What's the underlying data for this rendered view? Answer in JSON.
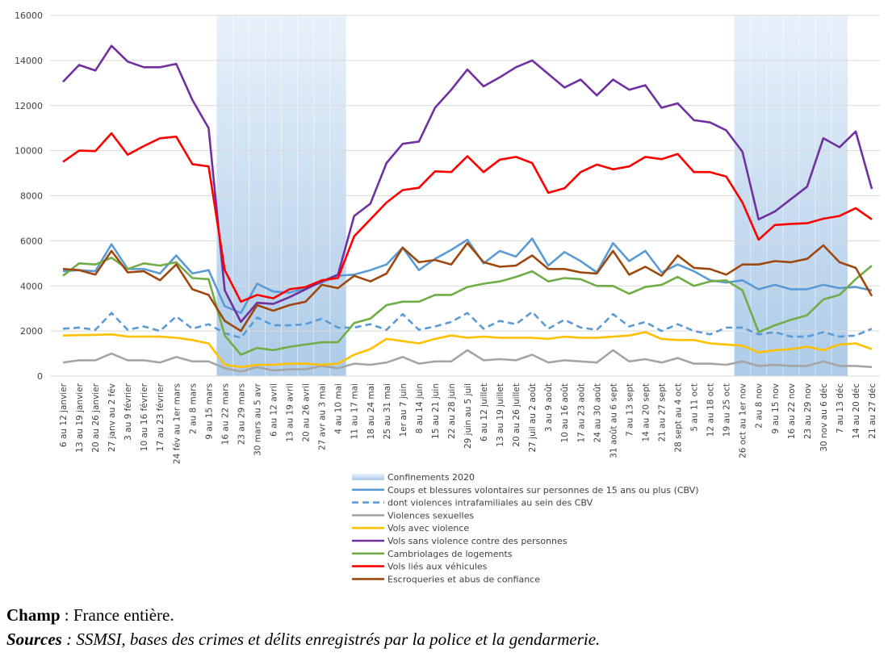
{
  "chart_data": {
    "type": "line",
    "title": "",
    "xlabel": "",
    "ylabel": "",
    "ylim": [
      0,
      16000
    ],
    "yticks": [
      0,
      2000,
      4000,
      6000,
      8000,
      10000,
      12000,
      14000,
      16000
    ],
    "grid": "horizontal",
    "legend_placement": "bottom",
    "categories": [
      "6 au 12 janvier",
      "13 au 19 janvier",
      "20 au 26 janvier",
      "27 janv au 2 fév",
      "3 au 9 février",
      "10 au 16 février",
      "17 au 23 février",
      "24 fév au 1er mars",
      "2 au 8 mars",
      "9 au 15 mars",
      "16 au 22 mars",
      "23 au 29 mars",
      "30 mars au 5 avr",
      "6 au 12 avril",
      "13 au 19 avril",
      "20 au 26 avril",
      "27 avr au 3 mai",
      "4 au 10 mai",
      "11 au 17 mai",
      "18 au 24 mai",
      "25 au 31 mai",
      "1er au 7 juin",
      "8 au 14 juin",
      "15 au 21 juin",
      "22 au 28 juin",
      "29 juin au 5 juil",
      "6 au 12 juillet",
      "13 au 19 juillet",
      "20 au 26 juillet",
      "27 juil au 2 août",
      "3 au 9 août",
      "10 au 16 août",
      "17 au 23 août",
      "24 au 30 août",
      "31 août au 6 sept",
      "7 au 13 sept",
      "14 au 20 sept",
      "21 au 27 sept",
      "28 sept au 4 oct",
      "5 au 11 oct",
      "12 au 18 oct",
      "19 au 25 oct",
      "26 oct au 1er nov",
      "2 au 8 nov",
      "9 au 15 nov",
      "16 au 22 nov",
      "23 au 29 nov",
      "30 nov au 6 déc",
      "7 au 13 déc",
      "14 au 20 déc",
      "21 au 27 déc"
    ],
    "shaded_periods": {
      "name": "Confinements 2020",
      "color": "#b4cfea",
      "ranges": [
        [
          "16 au 22 mars",
          "4 au 10 mai"
        ],
        [
          "26 oct au 1er nov",
          "7 au 13 déc"
        ]
      ]
    },
    "series": [
      {
        "name": "Coups et blessures volontaires sur personnes de 15 ans ou plus (CBV)",
        "color": "#5b9bd5",
        "dash": false,
        "values": [
          4650,
          4700,
          4650,
          5850,
          4750,
          4750,
          4550,
          5350,
          4550,
          4700,
          3100,
          2800,
          4100,
          3750,
          3700,
          3900,
          4150,
          4450,
          4500,
          4700,
          4950,
          5700,
          4700,
          5200,
          5600,
          6050,
          5000,
          5550,
          5300,
          6100,
          4900,
          5500,
          5100,
          4600,
          5900,
          5100,
          5550,
          4600,
          4950,
          4650,
          4250,
          4150,
          4250,
          3850,
          4050,
          3850,
          3850,
          4050,
          3900,
          3950,
          3800
        ]
      },
      {
        "name": "dont violences intrafamiliales au sein des CBV",
        "color": "#5b9bd5",
        "dash": true,
        "values": [
          2100,
          2150,
          2050,
          2800,
          2050,
          2200,
          2000,
          2650,
          2100,
          2300,
          1900,
          1700,
          2600,
          2250,
          2250,
          2300,
          2550,
          2150,
          2150,
          2300,
          2050,
          2750,
          2050,
          2200,
          2400,
          2800,
          2100,
          2450,
          2300,
          2850,
          2100,
          2500,
          2150,
          2050,
          2750,
          2200,
          2400,
          2000,
          2300,
          2000,
          1850,
          2150,
          2150,
          1850,
          1950,
          1750,
          1750,
          1950,
          1750,
          1800,
          2100
        ]
      },
      {
        "name": "Violences sexuelles",
        "color": "#a5a5a5",
        "dash": false,
        "values": [
          600,
          700,
          700,
          1000,
          700,
          700,
          600,
          850,
          650,
          650,
          350,
          200,
          400,
          250,
          300,
          300,
          450,
          350,
          550,
          500,
          600,
          850,
          550,
          650,
          650,
          1150,
          700,
          750,
          700,
          950,
          600,
          700,
          650,
          600,
          1150,
          650,
          750,
          600,
          800,
          550,
          550,
          500,
          650,
          450,
          500,
          450,
          450,
          650,
          450,
          450,
          400
        ]
      },
      {
        "name": "Vols avec violence",
        "color": "#ffc000",
        "dash": false,
        "values": [
          1800,
          1820,
          1830,
          1850,
          1750,
          1750,
          1750,
          1700,
          1600,
          1450,
          500,
          400,
          500,
          500,
          550,
          550,
          500,
          550,
          950,
          1200,
          1650,
          1550,
          1450,
          1650,
          1800,
          1700,
          1750,
          1700,
          1700,
          1700,
          1650,
          1750,
          1700,
          1700,
          1750,
          1800,
          1950,
          1650,
          1600,
          1600,
          1450,
          1400,
          1350,
          1050,
          1150,
          1200,
          1300,
          1150,
          1400,
          1450,
          1200
        ]
      },
      {
        "name": "Vols sans violence contre des personnes",
        "color": "#7030a0",
        "dash": false,
        "values": [
          13050,
          13800,
          13550,
          14650,
          13950,
          13700,
          13700,
          13850,
          12250,
          11000,
          3800,
          2400,
          3250,
          3200,
          3500,
          3850,
          4200,
          4500,
          7100,
          7650,
          9450,
          10300,
          10400,
          11900,
          12700,
          13600,
          12850,
          13250,
          13700,
          14000,
          13400,
          12800,
          13150,
          12450,
          13150,
          12700,
          12900,
          11900,
          12100,
          11350,
          11250,
          10900,
          9950,
          6950,
          7300,
          7850,
          8400,
          10550,
          10150,
          10850,
          8300
        ]
      },
      {
        "name": "Cambriolages de logements",
        "color": "#70ad47",
        "dash": false,
        "values": [
          4450,
          5000,
          4950,
          5250,
          4750,
          5000,
          4900,
          5050,
          4350,
          4300,
          1800,
          950,
          1250,
          1150,
          1300,
          1400,
          1500,
          1500,
          2350,
          2550,
          3150,
          3300,
          3300,
          3600,
          3600,
          3950,
          4100,
          4200,
          4400,
          4650,
          4200,
          4350,
          4300,
          4000,
          4000,
          3650,
          3950,
          4050,
          4400,
          4000,
          4200,
          4250,
          3800,
          1950,
          2250,
          2500,
          2700,
          3400,
          3600,
          4300,
          4900
        ]
      },
      {
        "name": "Vols liés aux véhicules",
        "color": "#ff0000",
        "dash": false,
        "values": [
          9500,
          10000,
          9980,
          10770,
          9820,
          10200,
          10550,
          10620,
          9400,
          9300,
          4700,
          3300,
          3600,
          3450,
          3850,
          3950,
          4250,
          4350,
          6200,
          6950,
          7700,
          8250,
          8350,
          9080,
          9050,
          9750,
          9050,
          9600,
          9720,
          9450,
          8130,
          8330,
          9050,
          9380,
          9170,
          9300,
          9720,
          9620,
          9850,
          9050,
          9050,
          8850,
          7700,
          6050,
          6700,
          6750,
          6780,
          6980,
          7100,
          7450,
          6950
        ]
      },
      {
        "name": "Escroqueries et abus de confiance",
        "color": "#9e480e",
        "dash": false,
        "values": [
          4750,
          4700,
          4500,
          5550,
          4600,
          4650,
          4250,
          4950,
          3850,
          3600,
          2450,
          2000,
          3150,
          2900,
          3150,
          3300,
          4050,
          3900,
          4450,
          4200,
          4550,
          5700,
          5050,
          5150,
          4950,
          5900,
          5050,
          4850,
          4900,
          5350,
          4750,
          4750,
          4600,
          4550,
          5550,
          4500,
          4850,
          4450,
          5350,
          4800,
          4750,
          4500,
          4950,
          4950,
          5100,
          5050,
          5200,
          5800,
          5050,
          4800,
          3550
        ]
      }
    ]
  },
  "footer": {
    "champ_label": "Champ",
    "champ_text": " : France entière.",
    "sources_label": "Sources",
    "sources_text": " : SSMSI, bases des crimes et délits enregistrés par la police et la gendarmerie."
  }
}
